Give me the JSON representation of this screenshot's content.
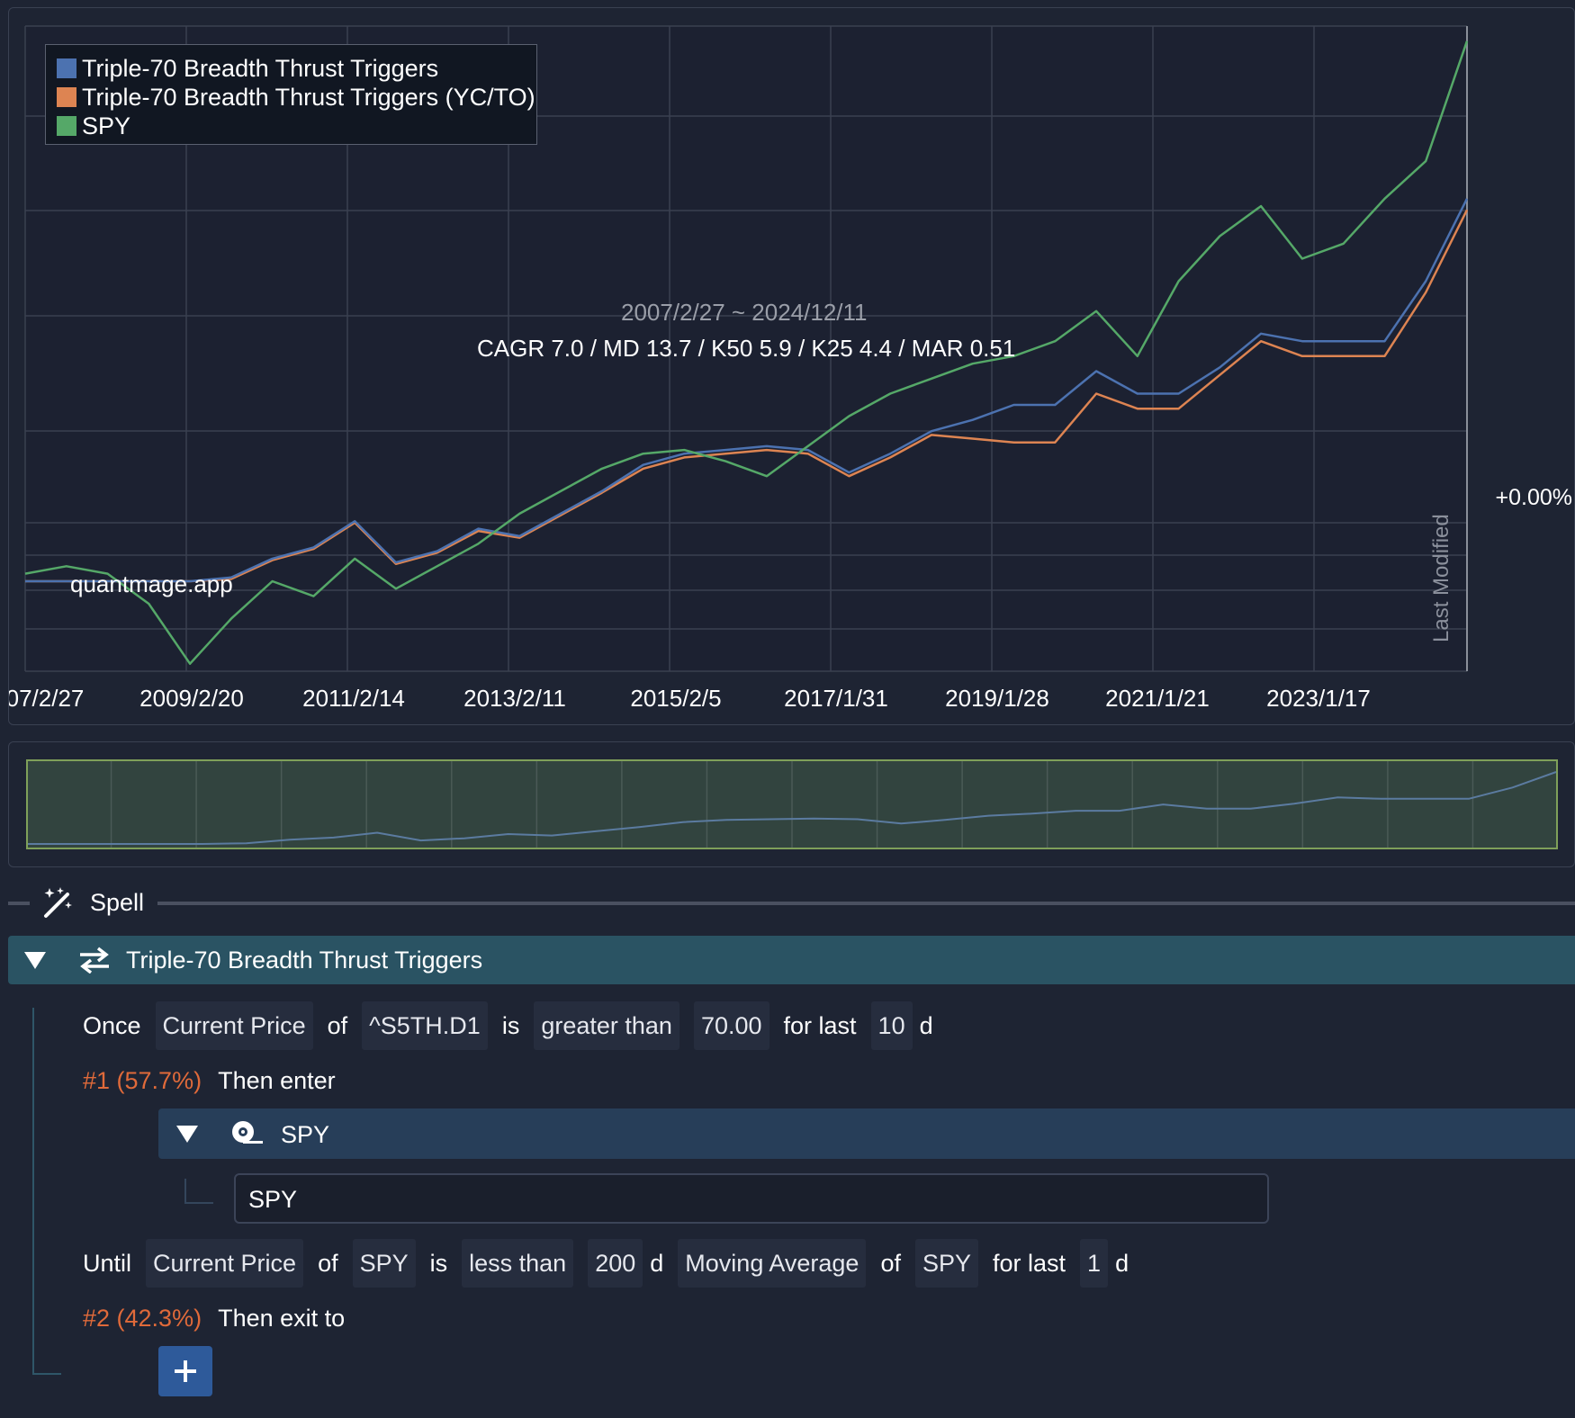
{
  "chart": {
    "legend": [
      {
        "label": "Triple-70 Breadth Thrust Triggers",
        "color": "#4c72b0"
      },
      {
        "label": "Triple-70 Breadth Thrust Triggers (YC/TO)",
        "color": "#dd8452"
      },
      {
        "label": "SPY",
        "color": "#55a868"
      }
    ],
    "date_range": "2007/2/27 ~ 2024/12/11",
    "stats": "CAGR 7.0 / MD 13.7 / K50 5.9 / K25 4.4 / MAR 0.51",
    "watermark": "quantmage.app",
    "baseline_label": "+0.00%",
    "side_label": "Last Modified",
    "x_ticks": [
      "07/2/27",
      "2009/2/20",
      "2011/2/14",
      "2013/2/11",
      "2015/2/5",
      "2017/1/31",
      "2019/1/28",
      "2021/1/21",
      "2023/1/17"
    ]
  },
  "chart_data": {
    "type": "line",
    "x": [
      "2007/2/27",
      "2007/9",
      "2008/3",
      "2008/9",
      "2009/2/20",
      "2009/8",
      "2010/2",
      "2010/8",
      "2011/2/14",
      "2011/8",
      "2012/2",
      "2012/8",
      "2013/2/11",
      "2013/8",
      "2014/2",
      "2014/8",
      "2015/2/5",
      "2015/8",
      "2016/2",
      "2016/8",
      "2017/1/31",
      "2017/8",
      "2018/2",
      "2018/8",
      "2019/1/28",
      "2019/8",
      "2020/2",
      "2020/8",
      "2021/1/21",
      "2021/8",
      "2022/2",
      "2022/8",
      "2023/1/17",
      "2023/8",
      "2024/2",
      "2024/12/11"
    ],
    "series": [
      {
        "name": "Triple-70 Breadth Thrust Triggers",
        "color": "#4c72b0",
        "values": [
          0.0,
          0.0,
          0.0,
          0.0,
          0.0,
          0.5,
          3.0,
          4.5,
          8.0,
          2.5,
          4.0,
          7.0,
          6.0,
          9.0,
          12.0,
          15.5,
          17.0,
          17.5,
          18.0,
          17.5,
          14.5,
          17.0,
          20.0,
          21.5,
          23.5,
          23.5,
          28.0,
          25.0,
          25.0,
          28.5,
          33.0,
          32.0,
          32.0,
          32.0,
          40.0,
          51.0
        ]
      },
      {
        "name": "Triple-70 Breadth Thrust Triggers (YC/TO)",
        "color": "#dd8452",
        "values": [
          0.0,
          0.0,
          0.0,
          0.0,
          0.0,
          0.3,
          2.8,
          4.3,
          7.8,
          2.3,
          3.8,
          6.7,
          5.8,
          8.8,
          11.8,
          15.0,
          16.5,
          17.0,
          17.5,
          17.0,
          14.0,
          16.5,
          19.5,
          19.0,
          18.5,
          18.5,
          25.0,
          23.0,
          23.0,
          27.5,
          32.0,
          30.0,
          30.0,
          30.0,
          38.5,
          49.5
        ]
      },
      {
        "name": "SPY",
        "color": "#55a868",
        "values": [
          1.0,
          2.0,
          1.0,
          -3.0,
          -11.0,
          -5.0,
          0.0,
          -2.0,
          3.0,
          -1.0,
          2.0,
          5.0,
          9.0,
          12.0,
          15.0,
          17.0,
          17.5,
          16.0,
          14.0,
          18.0,
          22.0,
          25.0,
          27.0,
          29.0,
          30.0,
          32.0,
          36.0,
          30.0,
          40.0,
          46.0,
          50.0,
          43.0,
          45.0,
          51.0,
          56.0,
          72.0
        ]
      }
    ],
    "ylim": [
      -12,
      74
    ],
    "grid": true,
    "legend_position": "top-left"
  },
  "spell": {
    "title": "Spell",
    "block_title": "Triple-70 Breadth Thrust Triggers",
    "once": {
      "word_once": "Once",
      "indicator": "Current Price",
      "word_of": "of",
      "ticker": "^S5TH.D1",
      "word_is": "is",
      "comparison": "greater than",
      "value": "70.00",
      "word_for_last": "for last",
      "days": "10",
      "unit": "d"
    },
    "step1": {
      "label": "#1 (57.7%)",
      "action": "Then enter"
    },
    "asset": {
      "header": "SPY",
      "input": "SPY"
    },
    "until": {
      "word_until": "Until",
      "indicator": "Current Price",
      "word_of": "of",
      "ticker": "SPY",
      "word_is": "is",
      "comparison": "less than",
      "period": "200",
      "period_unit": "d",
      "ma": "Moving Average",
      "word_of2": "of",
      "ticker2": "SPY",
      "word_for_last": "for last",
      "days": "1",
      "unit": "d"
    },
    "step2": {
      "label": "#2 (42.3%)",
      "action": "Then exit to"
    }
  }
}
